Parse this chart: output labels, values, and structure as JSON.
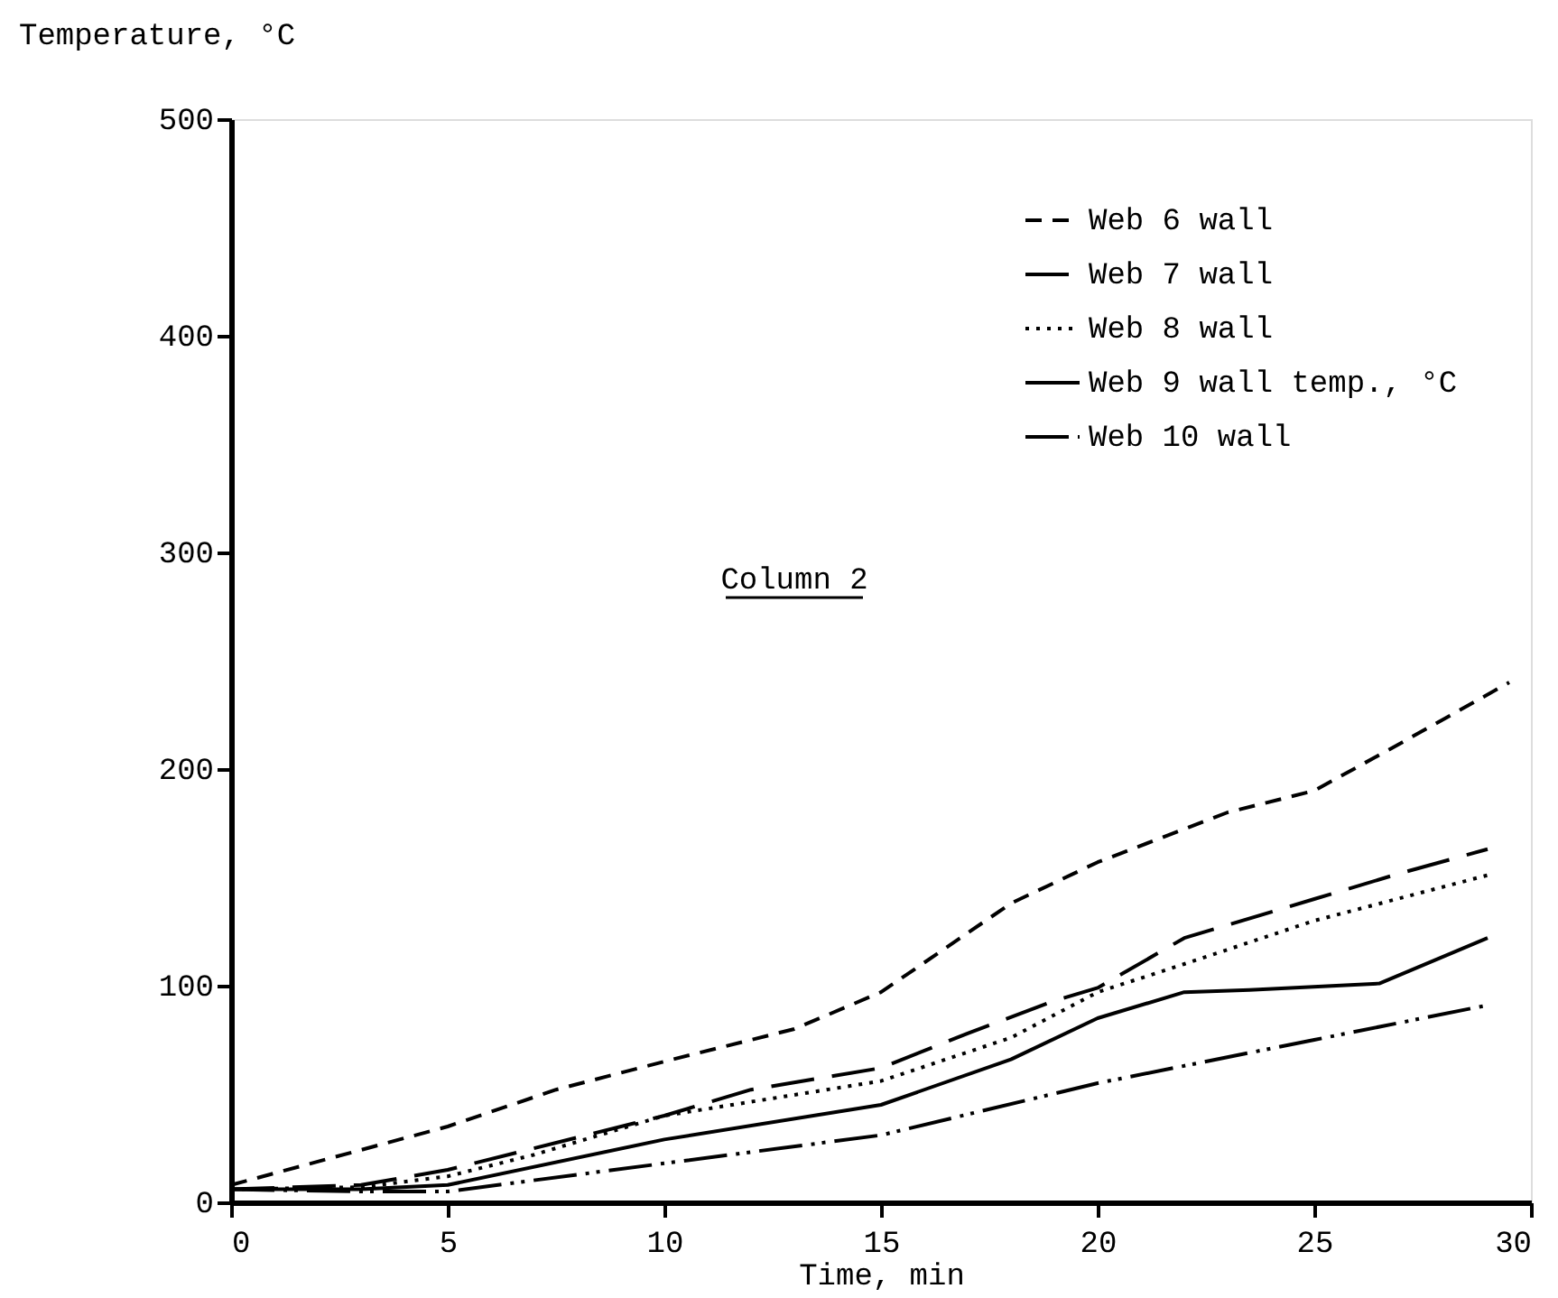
{
  "chart_data": {
    "type": "line",
    "xlabel": "Time, min",
    "ylabel": "Temperature, °C",
    "annotations": [
      "Column 2"
    ],
    "xlim": [
      0,
      30
    ],
    "xticks": [
      0,
      5,
      10,
      15,
      20,
      25,
      30
    ],
    "ylim": [
      0,
      500
    ],
    "yticks": [
      0,
      100,
      200,
      300,
      400,
      500
    ],
    "grid": false,
    "legend": "top right",
    "marker": "none",
    "series": [
      {
        "name": "Web 6 wall",
        "color": "#000000",
        "line_style": "dashed",
        "x": [
          0,
          5,
          7.5,
          10,
          13,
          15,
          18,
          20,
          23,
          25,
          27,
          29.5
        ],
        "values": [
          8,
          35,
          52,
          65,
          80,
          97,
          138,
          157,
          180,
          190,
          212,
          240
        ]
      },
      {
        "name": "Web 7 wall",
        "color": "#000000",
        "line_style": "longdash",
        "x": [
          0,
          3,
          5,
          8,
          10,
          12,
          15,
          17,
          19,
          20,
          22,
          25,
          27,
          29
        ],
        "values": [
          6,
          8,
          15,
          30,
          40,
          52,
          62,
          78,
          93,
          99,
          122,
          140,
          152,
          163
        ]
      },
      {
        "name": "Web 8 wall",
        "color": "#000000",
        "line_style": "dotted",
        "x": [
          0,
          3,
          5,
          7,
          10,
          15,
          18,
          20,
          22,
          25,
          29
        ],
        "values": [
          6,
          7,
          12,
          22,
          40,
          56,
          76,
          97,
          110,
          130,
          151
        ]
      },
      {
        "name": "Web 9 wall temp., °C",
        "color": "#000000",
        "line_style": "solid",
        "x": [
          0,
          3,
          5,
          10,
          15,
          18,
          20,
          22,
          23.5,
          26.5,
          29
        ],
        "values": [
          6,
          6,
          8,
          29,
          45,
          66,
          85,
          97,
          98,
          101,
          122
        ]
      },
      {
        "name": "Web 10 wall",
        "color": "#000000",
        "line_style": "dashdotdot",
        "x": [
          0,
          3,
          5,
          10,
          15,
          20,
          25,
          29
        ],
        "values": [
          6,
          5,
          5,
          18,
          31,
          55,
          75,
          91
        ]
      }
    ]
  }
}
